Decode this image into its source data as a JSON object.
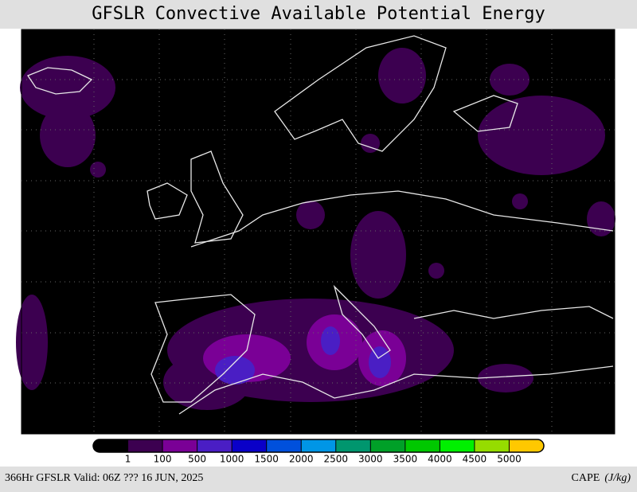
{
  "title": "GFSLR Convective Available Potential Energy",
  "colorbar": {
    "levels": [
      1,
      100,
      500,
      1000,
      1500,
      2000,
      2500,
      3000,
      3500,
      4000,
      4500,
      5000
    ],
    "colors": [
      "#000000",
      "#3c0050",
      "#7a0096",
      "#4a1ec4",
      "#0a00c8",
      "#0050dc",
      "#0096e6",
      "#00966e",
      "#00a028",
      "#00c800",
      "#00f000",
      "#96dc00",
      "#ffc800"
    ]
  },
  "footer": {
    "left": "366Hr GFSLR Valid: 06Z ??? 16 JUN, 2025",
    "variable": "CAPE",
    "units": "(J/kg)"
  }
}
